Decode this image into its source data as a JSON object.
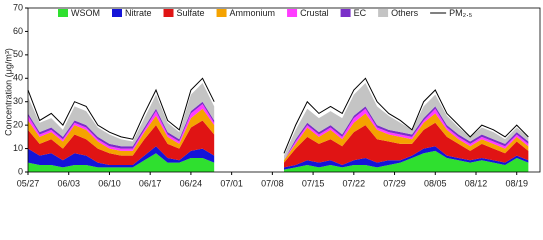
{
  "chart_data": {
    "type": "stacked_area",
    "y_label": "Concentration (μg/m³)",
    "x": [
      "05/27",
      "05/29",
      "05/31",
      "06/02",
      "06/04",
      "06/06",
      "06/08",
      "06/10",
      "06/12",
      "06/14",
      "06/16",
      "06/18",
      "06/20",
      "06/22",
      "06/24",
      "06/26",
      "06/28",
      "06/30",
      "07/02",
      "07/04",
      "07/06",
      "07/08",
      "07/10",
      "07/12",
      "07/14",
      "07/16",
      "07/18",
      "07/20",
      "07/22",
      "07/24",
      "07/26",
      "07/28",
      "07/30",
      "08/01",
      "08/03",
      "08/05",
      "08/07",
      "08/09",
      "08/11",
      "08/13",
      "08/15",
      "08/17",
      "08/19",
      "08/21"
    ],
    "xlim": [
      "05/27",
      "08/23"
    ],
    "xticks": [
      "05/27",
      "06/03",
      "06/10",
      "06/17",
      "06/24",
      "07/01",
      "07/08",
      "07/15",
      "07/22",
      "07/29",
      "08/05",
      "08/12",
      "08/19"
    ],
    "ylim": [
      0,
      70
    ],
    "yticks": [
      0,
      10,
      20,
      30,
      40,
      50,
      60,
      70
    ],
    "series": [
      {
        "name": "WSOM",
        "color": "#2fe02f",
        "values": [
          4,
          3,
          3,
          2,
          3,
          3,
          2,
          2,
          2,
          2,
          5,
          8,
          4,
          4,
          6,
          6,
          4,
          null,
          null,
          null,
          null,
          null,
          1,
          2,
          3,
          2,
          3,
          2,
          3,
          3,
          2,
          3,
          4,
          6,
          8,
          9,
          6,
          5,
          4,
          5,
          4,
          3,
          6,
          4
        ]
      },
      {
        "name": "Nitrate",
        "color": "#1414d8",
        "values": [
          6,
          4,
          5,
          3,
          5,
          4,
          2,
          1,
          1,
          1,
          2,
          3,
          2,
          1,
          3,
          4,
          3,
          null,
          null,
          null,
          null,
          null,
          1,
          1,
          2,
          2,
          2,
          1,
          2,
          3,
          2,
          2,
          1,
          1,
          2,
          2,
          1,
          1,
          1,
          1,
          1,
          1,
          1,
          1
        ]
      },
      {
        "name": "Sulfate",
        "color": "#e01414",
        "values": [
          8,
          5,
          6,
          5,
          8,
          7,
          6,
          5,
          4,
          4,
          7,
          9,
          6,
          5,
          10,
          12,
          9,
          null,
          null,
          null,
          null,
          null,
          2,
          7,
          10,
          8,
          9,
          8,
          12,
          14,
          10,
          8,
          7,
          5,
          8,
          10,
          8,
          6,
          4,
          6,
          5,
          4,
          6,
          4
        ]
      },
      {
        "name": "Ammonium",
        "color": "#f5a300",
        "values": [
          4,
          3,
          3,
          3,
          4,
          4,
          3,
          2,
          2,
          2,
          3,
          4,
          3,
          2,
          4,
          5,
          4,
          null,
          null,
          null,
          null,
          null,
          1,
          2,
          4,
          3,
          4,
          3,
          4,
          5,
          4,
          3,
          3,
          2,
          3,
          4,
          3,
          2,
          2,
          2,
          2,
          2,
          2,
          2
        ]
      },
      {
        "name": "Crustal",
        "color": "#ff3cff",
        "values": [
          2,
          1,
          1,
          1,
          1,
          1,
          1,
          1,
          1,
          1,
          1,
          2,
          1,
          1,
          2,
          2,
          1,
          null,
          null,
          null,
          null,
          null,
          0,
          1,
          1,
          1,
          1,
          1,
          2,
          2,
          1,
          1,
          1,
          1,
          1,
          2,
          1,
          1,
          1,
          1,
          1,
          1,
          1,
          1
        ]
      },
      {
        "name": "EC",
        "color": "#7a2fc8",
        "values": [
          1,
          1,
          1,
          1,
          1,
          1,
          1,
          1,
          1,
          1,
          1,
          1,
          1,
          1,
          1,
          1,
          1,
          null,
          null,
          null,
          null,
          null,
          0,
          1,
          1,
          1,
          1,
          1,
          1,
          1,
          1,
          1,
          1,
          1,
          1,
          1,
          1,
          1,
          1,
          1,
          1,
          1,
          1,
          1
        ]
      },
      {
        "name": "Others",
        "color": "#c4c4c4",
        "values": [
          7,
          4,
          4,
          3,
          6,
          6,
          4,
          4,
          3,
          2,
          4,
          6,
          4,
          3,
          7,
          8,
          6,
          null,
          null,
          null,
          null,
          null,
          2,
          4,
          6,
          6,
          6,
          7,
          9,
          10,
          8,
          6,
          4,
          2,
          5,
          5,
          4,
          3,
          2,
          3,
          3,
          2,
          2,
          2
        ]
      }
    ],
    "line": {
      "name": "PM₂.₅",
      "color": "#000000",
      "values": [
        35,
        22,
        25,
        20,
        30,
        28,
        20,
        17,
        15,
        14,
        25,
        35,
        22,
        18,
        35,
        40,
        30,
        null,
        null,
        null,
        null,
        null,
        8,
        20,
        30,
        25,
        28,
        25,
        35,
        40,
        30,
        25,
        22,
        18,
        30,
        35,
        25,
        20,
        15,
        20,
        18,
        15,
        20,
        15
      ]
    }
  }
}
